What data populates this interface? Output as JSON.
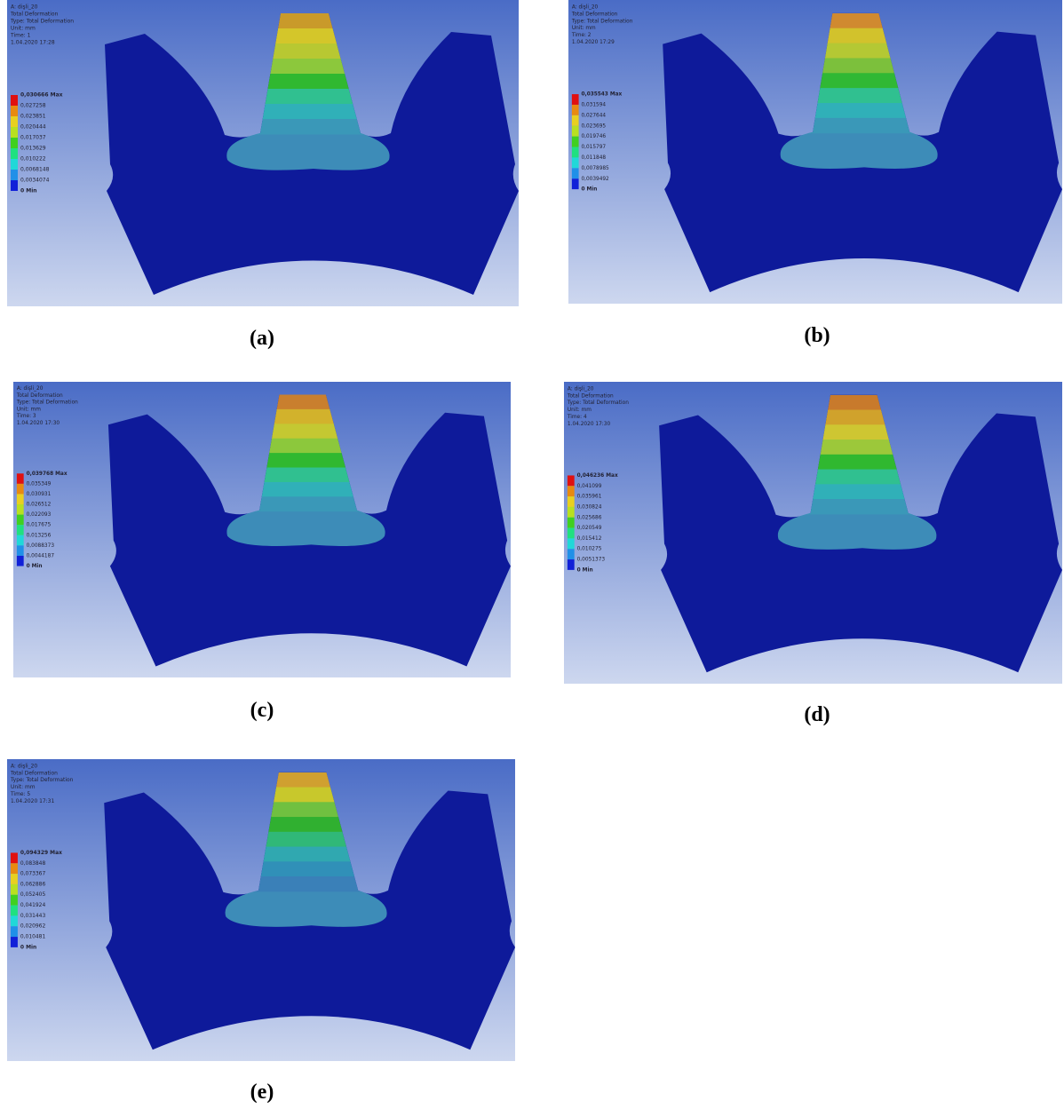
{
  "panels": [
    {
      "caption": "(a)",
      "header": [
        "A: dişli_20",
        "Total Deformation",
        "Type: Total Deformation",
        "Unit: mm",
        "Time: 1",
        "1.04.2020 17:28"
      ],
      "legend": [
        "0,030666 Max",
        "0,027258",
        "0,023851",
        "0,020444",
        "0,017037",
        "0,013629",
        "0,010222",
        "0,0068148",
        "0,0034074",
        "0 Min"
      ]
    },
    {
      "caption": "(b)",
      "header": [
        "A: dişli_20",
        "Total Deformation",
        "Type: Total Deformation",
        "Unit: mm",
        "Time: 2",
        "1.04.2020 17:29"
      ],
      "legend": [
        "0,035543 Max",
        "0,031594",
        "0,027644",
        "0,023695",
        "0,019746",
        "0,015797",
        "0,011848",
        "0,0078985",
        "0,0039492",
        "0 Min"
      ]
    },
    {
      "caption": "(c)",
      "header": [
        "A: dişli_20",
        "Total Deformation",
        "Type: Total Deformation",
        "Unit: mm",
        "Time: 3",
        "1.04.2020 17:30"
      ],
      "legend": [
        "0,039768 Max",
        "0,035349",
        "0,030931",
        "0,026512",
        "0,022093",
        "0,017675",
        "0,013256",
        "0,0088373",
        "0,0044187",
        "0 Min"
      ]
    },
    {
      "caption": "(d)",
      "header": [
        "A: dişli_20",
        "Total Deformation",
        "Type: Total Deformation",
        "Unit: mm",
        "Time: 4",
        "1.04.2020 17:30"
      ],
      "legend": [
        "0,046236 Max",
        "0,041099",
        "0,035961",
        "0,030824",
        "0,025686",
        "0,020549",
        "0,015412",
        "0,010275",
        "0,0051373",
        "0 Min"
      ]
    },
    {
      "caption": "(e)",
      "header": [
        "A: dişli_20",
        "Total Deformation",
        "Type: Total Deformation",
        "Unit: mm",
        "Time: 5",
        "1.04.2020 17:31"
      ],
      "legend": [
        "0,094329 Max",
        "0,083848",
        "0,073367",
        "0,062886",
        "0,052405",
        "0,041924",
        "0,031443",
        "0,020962",
        "0,010481",
        "0 Min"
      ]
    }
  ]
}
